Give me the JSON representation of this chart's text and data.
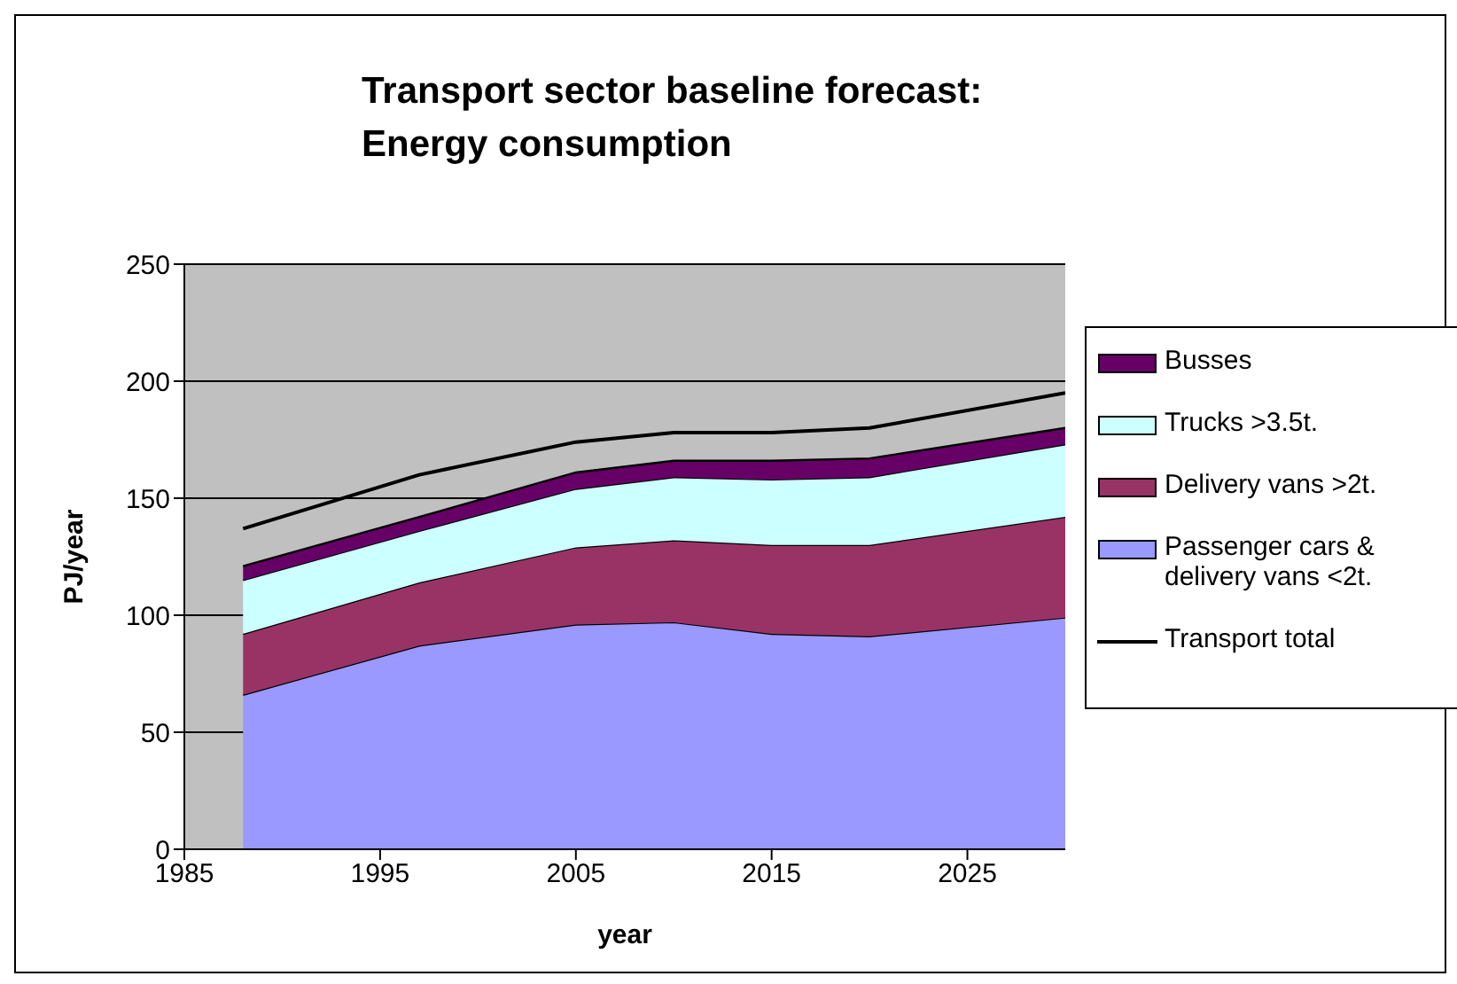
{
  "chart_data": {
    "type": "area",
    "stacked": true,
    "title": "Transport sector baseline forecast:\nEnergy consumption",
    "xlabel": "year",
    "ylabel": "PJ/year",
    "x": [
      1988,
      1997,
      2005,
      2010,
      2015,
      2020,
      2030
    ],
    "xlim": [
      1985,
      2030
    ],
    "xticks": [
      1985,
      1995,
      2005,
      2015,
      2025
    ],
    "ylim": [
      0,
      250
    ],
    "yticks": [
      0,
      50,
      100,
      150,
      200,
      250
    ],
    "grid": "y",
    "legend": "right",
    "series": [
      {
        "name": "Passenger cars & delivery vans <2t.",
        "color": "#9999ff",
        "values": [
          66,
          87,
          96,
          97,
          92,
          91,
          99
        ]
      },
      {
        "name": "Delivery vans >2t.",
        "color": "#993366",
        "values": [
          26,
          27,
          33,
          35,
          38,
          39,
          43
        ]
      },
      {
        "name": "Trucks >3.5t.",
        "color": "#ccffff",
        "values": [
          23,
          22,
          25,
          27,
          28,
          29,
          31
        ]
      },
      {
        "name": "Busses",
        "color": "#660066",
        "values": [
          6,
          6,
          7,
          7,
          8,
          8,
          7
        ]
      },
      {
        "name": "Transport total",
        "type": "line",
        "color": "#000000",
        "values": [
          137,
          160,
          174,
          178,
          178,
          180,
          195
        ]
      }
    ]
  }
}
